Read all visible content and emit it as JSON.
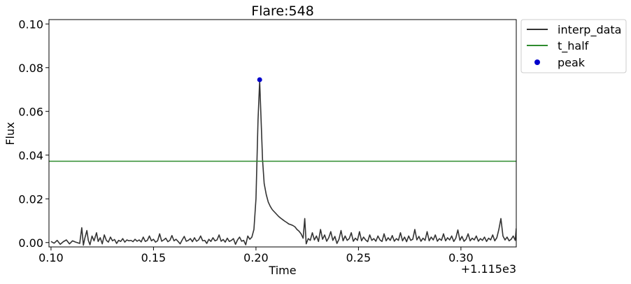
{
  "chart_data": {
    "type": "line",
    "title": "Flare:548",
    "xlabel": "Time",
    "ylabel": "Flux",
    "offset_label": "+1.115e3",
    "xlim": [
      0.099,
      0.327
    ],
    "ylim": [
      -0.002,
      0.102
    ],
    "x_ticks": [
      0.1,
      0.15,
      0.2,
      0.25,
      0.3
    ],
    "x_tick_labels": [
      "0.10",
      "0.15",
      "0.20",
      "0.25",
      "0.30"
    ],
    "y_ticks": [
      0.0,
      0.02,
      0.04,
      0.06,
      0.08,
      0.1
    ],
    "y_tick_labels": [
      "0.00",
      "0.02",
      "0.04",
      "0.06",
      "0.08",
      "0.10"
    ],
    "grid": false,
    "legend_position": "outside-top-right",
    "colors": {
      "interp": "#333333",
      "t_half": "#2e8b2e",
      "peak": "#0000cc"
    },
    "series": [
      {
        "name": "interp_data",
        "kind": "line",
        "points": [
          [
            0.1,
            0.0005
          ],
          [
            0.1015,
            -0.0003
          ],
          [
            0.103,
            0.001
          ],
          [
            0.1045,
            -0.0008
          ],
          [
            0.106,
            0.0004
          ],
          [
            0.1075,
            0.0012
          ],
          [
            0.109,
            -0.0006
          ],
          [
            0.1105,
            0.0008
          ],
          [
            0.112,
            0.0002
          ],
          [
            0.114,
            -0.0004
          ],
          [
            0.115,
            0.0068
          ],
          [
            0.1158,
            -0.0012
          ],
          [
            0.1165,
            0.002
          ],
          [
            0.1175,
            0.0055
          ],
          [
            0.1182,
            0.001
          ],
          [
            0.119,
            -0.001
          ],
          [
            0.12,
            0.003
          ],
          [
            0.121,
            0.0008
          ],
          [
            0.1222,
            0.0045
          ],
          [
            0.123,
            0.0005
          ],
          [
            0.124,
            0.0022
          ],
          [
            0.125,
            -0.0006
          ],
          [
            0.126,
            0.0035
          ],
          [
            0.127,
            0.001
          ],
          [
            0.128,
            0.0002
          ],
          [
            0.129,
            0.0025
          ],
          [
            0.13,
            0.0008
          ],
          [
            0.131,
            0.0014
          ],
          [
            0.132,
            -0.0004
          ],
          [
            0.133,
            0.001
          ],
          [
            0.134,
            0.0005
          ],
          [
            0.135,
            0.0018
          ],
          [
            0.136,
            0.0002
          ],
          [
            0.137,
            0.0012
          ],
          [
            0.138,
            0.0008
          ],
          [
            0.139,
            0.001
          ],
          [
            0.14,
            0.0004
          ],
          [
            0.141,
            0.0015
          ],
          [
            0.142,
            0.0006
          ],
          [
            0.143,
            0.0012
          ],
          [
            0.144,
            0.0003
          ],
          [
            0.145,
            0.0025
          ],
          [
            0.146,
            0.0005
          ],
          [
            0.147,
            0.001
          ],
          [
            0.148,
            0.003
          ],
          [
            0.149,
            0.0008
          ],
          [
            0.15,
            0.0015
          ],
          [
            0.151,
            0.0002
          ],
          [
            0.152,
            0.0008
          ],
          [
            0.153,
            0.004
          ],
          [
            0.154,
            0.0006
          ],
          [
            0.155,
            0.0012
          ],
          [
            0.156,
            0.002
          ],
          [
            0.157,
            0.0004
          ],
          [
            0.158,
            0.001
          ],
          [
            0.159,
            0.0032
          ],
          [
            0.16,
            0.0008
          ],
          [
            0.161,
            0.0015
          ],
          [
            0.162,
            0.0005
          ],
          [
            0.163,
            -0.0006
          ],
          [
            0.164,
            0.0012
          ],
          [
            0.165,
            0.0028
          ],
          [
            0.166,
            0.0006
          ],
          [
            0.167,
            0.001
          ],
          [
            0.168,
            0.0018
          ],
          [
            0.169,
            0.0004
          ],
          [
            0.17,
            0.0022
          ],
          [
            0.171,
            0.0006
          ],
          [
            0.172,
            0.0012
          ],
          [
            0.173,
            0.003
          ],
          [
            0.174,
            0.0008
          ],
          [
            0.175,
            0.001
          ],
          [
            0.176,
            -0.0004
          ],
          [
            0.177,
            0.0015
          ],
          [
            0.178,
            0.0005
          ],
          [
            0.179,
            0.0022
          ],
          [
            0.18,
            0.0008
          ],
          [
            0.181,
            0.0012
          ],
          [
            0.182,
            0.0035
          ],
          [
            0.183,
            0.0006
          ],
          [
            0.184,
            0.0014
          ],
          [
            0.185,
            0.0002
          ],
          [
            0.186,
            0.002
          ],
          [
            0.187,
            0.0005
          ],
          [
            0.188,
            0.001
          ],
          [
            0.189,
            0.0018
          ],
          [
            0.19,
            -0.0008
          ],
          [
            0.191,
            0.0012
          ],
          [
            0.192,
            0.0025
          ],
          [
            0.193,
            0.0006
          ],
          [
            0.194,
            0.001
          ],
          [
            0.195,
            -0.001
          ],
          [
            0.196,
            0.003
          ],
          [
            0.197,
            0.0015
          ],
          [
            0.198,
            0.0025
          ],
          [
            0.199,
            0.006
          ],
          [
            0.2,
            0.02
          ],
          [
            0.201,
            0.056
          ],
          [
            0.2018,
            0.074
          ],
          [
            0.2025,
            0.056
          ],
          [
            0.2032,
            0.038
          ],
          [
            0.204,
            0.027
          ],
          [
            0.205,
            0.022
          ],
          [
            0.206,
            0.0185
          ],
          [
            0.207,
            0.0165
          ],
          [
            0.208,
            0.015
          ],
          [
            0.209,
            0.014
          ],
          [
            0.21,
            0.013
          ],
          [
            0.211,
            0.012
          ],
          [
            0.212,
            0.0112
          ],
          [
            0.213,
            0.0105
          ],
          [
            0.214,
            0.0098
          ],
          [
            0.215,
            0.0092
          ],
          [
            0.216,
            0.0085
          ],
          [
            0.217,
            0.0082
          ],
          [
            0.218,
            0.0078
          ],
          [
            0.219,
            0.0072
          ],
          [
            0.22,
            0.006
          ],
          [
            0.221,
            0.0052
          ],
          [
            0.222,
            0.004
          ],
          [
            0.223,
            0.002
          ],
          [
            0.2238,
            0.011
          ],
          [
            0.2245,
            -0.0006
          ],
          [
            0.2255,
            0.0018
          ],
          [
            0.2265,
            0.001
          ],
          [
            0.2275,
            0.0045
          ],
          [
            0.2285,
            0.0012
          ],
          [
            0.2295,
            0.003
          ],
          [
            0.2305,
            0.0005
          ],
          [
            0.2315,
            0.006
          ],
          [
            0.2325,
            0.0015
          ],
          [
            0.2335,
            0.0035
          ],
          [
            0.2345,
            0.0006
          ],
          [
            0.2355,
            0.0022
          ],
          [
            0.2365,
            0.005
          ],
          [
            0.2375,
            0.001
          ],
          [
            0.2385,
            0.0028
          ],
          [
            0.2395,
            -0.0004
          ],
          [
            0.2405,
            0.0015
          ],
          [
            0.2415,
            0.0055
          ],
          [
            0.2425,
            0.0008
          ],
          [
            0.2435,
            0.003
          ],
          [
            0.2445,
            0.001
          ],
          [
            0.2455,
            0.0018
          ],
          [
            0.2465,
            0.0045
          ],
          [
            0.2475,
            0.0006
          ],
          [
            0.2485,
            0.002
          ],
          [
            0.2495,
            0.001
          ],
          [
            0.2505,
            0.005
          ],
          [
            0.2515,
            0.0008
          ],
          [
            0.2525,
            0.0025
          ],
          [
            0.2535,
            0.0012
          ],
          [
            0.2545,
            0.0004
          ],
          [
            0.2555,
            0.0035
          ],
          [
            0.2565,
            0.001
          ],
          [
            0.2575,
            0.0018
          ],
          [
            0.2585,
            0.0006
          ],
          [
            0.2595,
            0.003
          ],
          [
            0.2605,
            0.0012
          ],
          [
            0.2615,
            0.0005
          ],
          [
            0.2625,
            0.004
          ],
          [
            0.2635,
            0.0008
          ],
          [
            0.2645,
            0.0022
          ],
          [
            0.2655,
            0.001
          ],
          [
            0.2665,
            0.0032
          ],
          [
            0.2675,
            0.0006
          ],
          [
            0.2685,
            0.0018
          ],
          [
            0.2695,
            0.001
          ],
          [
            0.2705,
            0.0045
          ],
          [
            0.2715,
            0.0008
          ],
          [
            0.2725,
            0.0025
          ],
          [
            0.2735,
            0.0004
          ],
          [
            0.2745,
            0.003
          ],
          [
            0.2755,
            0.001
          ],
          [
            0.2765,
            0.0015
          ],
          [
            0.2775,
            0.006
          ],
          [
            0.2785,
            0.0012
          ],
          [
            0.2795,
            0.0028
          ],
          [
            0.2805,
            0.0006
          ],
          [
            0.2815,
            0.002
          ],
          [
            0.2825,
            0.001
          ],
          [
            0.2835,
            0.005
          ],
          [
            0.2845,
            0.0008
          ],
          [
            0.2855,
            0.0025
          ],
          [
            0.2865,
            0.0012
          ],
          [
            0.2875,
            0.0035
          ],
          [
            0.2885,
            0.0006
          ],
          [
            0.2895,
            0.0018
          ],
          [
            0.2905,
            0.001
          ],
          [
            0.2915,
            0.004
          ],
          [
            0.2925,
            0.0008
          ],
          [
            0.2935,
            0.0022
          ],
          [
            0.2945,
            0.0012
          ],
          [
            0.2955,
            0.003
          ],
          [
            0.2965,
            0.0005
          ],
          [
            0.2975,
            0.002
          ],
          [
            0.2985,
            0.0058
          ],
          [
            0.2995,
            0.001
          ],
          [
            0.3005,
            0.0028
          ],
          [
            0.3015,
            0.0006
          ],
          [
            0.3025,
            0.0015
          ],
          [
            0.3035,
            0.004
          ],
          [
            0.3045,
            0.0008
          ],
          [
            0.3055,
            0.002
          ],
          [
            0.3065,
            0.0012
          ],
          [
            0.3075,
            0.003
          ],
          [
            0.3085,
            0.0006
          ],
          [
            0.3095,
            0.0018
          ],
          [
            0.3105,
            0.001
          ],
          [
            0.3115,
            0.0025
          ],
          [
            0.3125,
            0.0005
          ],
          [
            0.3135,
            0.002
          ],
          [
            0.3145,
            0.0012
          ],
          [
            0.3155,
            0.0035
          ],
          [
            0.3165,
            0.0008
          ],
          [
            0.3175,
            0.0022
          ],
          [
            0.3185,
            0.006
          ],
          [
            0.3195,
            0.011
          ],
          [
            0.3205,
            0.003
          ],
          [
            0.3215,
            0.0012
          ],
          [
            0.3225,
            0.0025
          ],
          [
            0.3235,
            0.0008
          ],
          [
            0.3245,
            0.0015
          ],
          [
            0.3255,
            0.003
          ],
          [
            0.3265,
            0.001
          ],
          [
            0.327,
            0.0065
          ]
        ]
      },
      {
        "name": "t_half",
        "kind": "hline",
        "y": 0.0372
      },
      {
        "name": "peak",
        "kind": "scatter",
        "points": [
          [
            0.2018,
            0.0745
          ]
        ]
      }
    ]
  }
}
